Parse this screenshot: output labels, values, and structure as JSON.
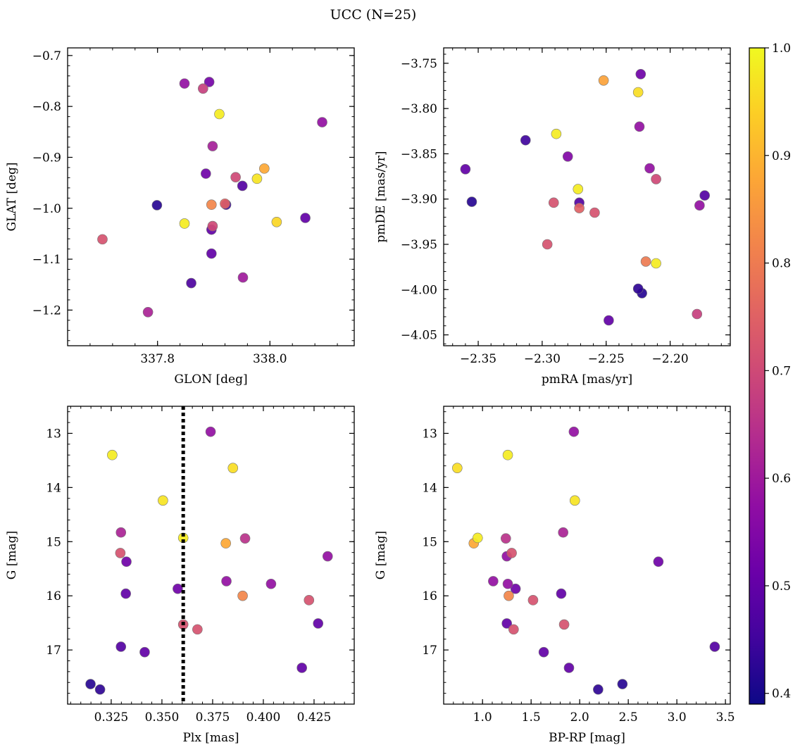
{
  "figure": {
    "title": "UCC (N=25)"
  },
  "colorbar": {
    "colormap": "plasma",
    "range": [
      0.39,
      1.0
    ],
    "ticks": [
      "0.4",
      "0.5",
      "0.6",
      "0.7",
      "0.8",
      "0.9",
      "1.0"
    ]
  },
  "chart_data": [
    {
      "type": "scatter",
      "xlabel": "GLON [deg]",
      "ylabel": "GLAT [deg]",
      "xlim": [
        337.64,
        338.15
      ],
      "ylim": [
        -1.27,
        -0.685
      ],
      "xticks": [
        337.8,
        338.0
      ],
      "xtick_labels": [
        "337.8",
        "338.0"
      ],
      "yticks": [
        -0.7,
        -0.8,
        -0.9,
        -1.0,
        -1.1,
        -1.2
      ],
      "ytick_labels": [
        "−0.7",
        "−0.8",
        "−0.9",
        "−1.0",
        "−1.1",
        "−1.2"
      ],
      "points": [
        {
          "x": 337.848,
          "y": -0.755,
          "c": 0.58
        },
        {
          "x": 337.892,
          "y": -0.752,
          "c": 0.53
        },
        {
          "x": 337.881,
          "y": -0.765,
          "c": 0.68
        },
        {
          "x": 337.91,
          "y": -0.815,
          "c": 0.98
        },
        {
          "x": 338.093,
          "y": -0.831,
          "c": 0.58
        },
        {
          "x": 337.898,
          "y": -0.878,
          "c": 0.61
        },
        {
          "x": 337.886,
          "y": -0.932,
          "c": 0.52
        },
        {
          "x": 337.939,
          "y": -0.939,
          "c": 0.7
        },
        {
          "x": 337.99,
          "y": -0.922,
          "c": 0.88
        },
        {
          "x": 337.977,
          "y": -0.942,
          "c": 0.97
        },
        {
          "x": 337.951,
          "y": -0.956,
          "c": 0.48
        },
        {
          "x": 337.799,
          "y": -0.994,
          "c": 0.42
        },
        {
          "x": 337.896,
          "y": -0.993,
          "c": 0.82
        },
        {
          "x": 337.92,
          "y": -0.991,
          "c": 0.75
        },
        {
          "x": 337.922,
          "y": -0.993,
          "c": 0.45
        },
        {
          "x": 337.848,
          "y": -1.03,
          "c": 0.98
        },
        {
          "x": 338.012,
          "y": -1.027,
          "c": 0.95
        },
        {
          "x": 338.063,
          "y": -1.019,
          "c": 0.5
        },
        {
          "x": 337.898,
          "y": -1.035,
          "c": 0.7
        },
        {
          "x": 337.896,
          "y": -1.042,
          "c": 0.5
        },
        {
          "x": 337.702,
          "y": -1.061,
          "c": 0.72
        },
        {
          "x": 337.896,
          "y": -1.089,
          "c": 0.5
        },
        {
          "x": 337.952,
          "y": -1.136,
          "c": 0.6
        },
        {
          "x": 337.86,
          "y": -1.147,
          "c": 0.47
        },
        {
          "x": 337.783,
          "y": -1.204,
          "c": 0.62
        }
      ]
    },
    {
      "type": "scatter",
      "xlabel": "pmRA [mas/yr]",
      "ylabel": "pmDE [mas/yr]",
      "xlim": [
        -2.377,
        -2.153
      ],
      "ylim": [
        -4.062,
        -3.733
      ],
      "xticks": [
        -2.35,
        -2.3,
        -2.25,
        -2.2
      ],
      "xtick_labels": [
        "−2.35",
        "−2.30",
        "−2.25",
        "−2.20"
      ],
      "yticks": [
        -3.75,
        -3.8,
        -3.85,
        -3.9,
        -3.95,
        -4.0,
        -4.05
      ],
      "ytick_labels": [
        "−3.75",
        "−3.80",
        "−3.85",
        "−3.90",
        "−3.95",
        "−4.00",
        "−4.05"
      ],
      "points": [
        {
          "x": -2.252,
          "y": -3.769,
          "c": 0.87
        },
        {
          "x": -2.223,
          "y": -3.762,
          "c": 0.52
        },
        {
          "x": -2.225,
          "y": -3.782,
          "c": 0.96
        },
        {
          "x": -2.224,
          "y": -3.82,
          "c": 0.58
        },
        {
          "x": -2.289,
          "y": -3.828,
          "c": 0.98
        },
        {
          "x": -2.313,
          "y": -3.835,
          "c": 0.45
        },
        {
          "x": -2.28,
          "y": -3.853,
          "c": 0.55
        },
        {
          "x": -2.36,
          "y": -3.867,
          "c": 0.5
        },
        {
          "x": -2.216,
          "y": -3.866,
          "c": 0.58
        },
        {
          "x": -2.211,
          "y": -3.878,
          "c": 0.7
        },
        {
          "x": -2.272,
          "y": -3.889,
          "c": 0.98
        },
        {
          "x": -2.355,
          "y": -3.903,
          "c": 0.42
        },
        {
          "x": -2.291,
          "y": -3.904,
          "c": 0.72
        },
        {
          "x": -2.271,
          "y": -3.904,
          "c": 0.48
        },
        {
          "x": -2.271,
          "y": -3.91,
          "c": 0.75
        },
        {
          "x": -2.259,
          "y": -3.915,
          "c": 0.72
        },
        {
          "x": -2.173,
          "y": -3.896,
          "c": 0.48
        },
        {
          "x": -2.177,
          "y": -3.907,
          "c": 0.58
        },
        {
          "x": -2.296,
          "y": -3.95,
          "c": 0.72
        },
        {
          "x": -2.219,
          "y": -3.969,
          "c": 0.8
        },
        {
          "x": -2.211,
          "y": -3.971,
          "c": 0.98
        },
        {
          "x": -2.225,
          "y": -3.999,
          "c": 0.43
        },
        {
          "x": -2.222,
          "y": -4.004,
          "c": 0.42
        },
        {
          "x": -2.248,
          "y": -4.034,
          "c": 0.5
        },
        {
          "x": -2.179,
          "y": -4.027,
          "c": 0.68
        }
      ]
    },
    {
      "type": "scatter",
      "xlabel": "Plx [mas]",
      "ylabel": "G [mag]",
      "xlim": [
        0.3035,
        0.4448
      ],
      "ylim": [
        18.0,
        12.5
      ],
      "xticks": [
        0.325,
        0.35,
        0.375,
        0.4,
        0.425
      ],
      "xtick_labels": [
        "0.325",
        "0.350",
        "0.375",
        "0.400",
        "0.425"
      ],
      "yticks": [
        13,
        14,
        15,
        16,
        17
      ],
      "ytick_labels": [
        "13",
        "14",
        "15",
        "16",
        "17"
      ],
      "vline": {
        "x": 0.3605,
        "style": "dotted"
      },
      "points": [
        {
          "x": 0.374,
          "y": 12.97,
          "c": 0.58
        },
        {
          "x": 0.3255,
          "y": 13.4,
          "c": 0.98
        },
        {
          "x": 0.385,
          "y": 13.64,
          "c": 0.96
        },
        {
          "x": 0.3505,
          "y": 14.24,
          "c": 0.97
        },
        {
          "x": 0.3298,
          "y": 14.83,
          "c": 0.62
        },
        {
          "x": 0.3605,
          "y": 14.93,
          "c": 0.98
        },
        {
          "x": 0.391,
          "y": 14.94,
          "c": 0.65
        },
        {
          "x": 0.3815,
          "y": 15.03,
          "c": 0.88
        },
        {
          "x": 0.3295,
          "y": 15.21,
          "c": 0.72
        },
        {
          "x": 0.4317,
          "y": 15.27,
          "c": 0.58
        },
        {
          "x": 0.3325,
          "y": 15.37,
          "c": 0.52
        },
        {
          "x": 0.3818,
          "y": 15.73,
          "c": 0.58
        },
        {
          "x": 0.4038,
          "y": 15.78,
          "c": 0.58
        },
        {
          "x": 0.3578,
          "y": 15.87,
          "c": 0.52
        },
        {
          "x": 0.3322,
          "y": 15.96,
          "c": 0.5
        },
        {
          "x": 0.3898,
          "y": 16.0,
          "c": 0.82
        },
        {
          "x": 0.4225,
          "y": 16.08,
          "c": 0.72
        },
        {
          "x": 0.427,
          "y": 16.51,
          "c": 0.5
        },
        {
          "x": 0.3605,
          "y": 16.53,
          "c": 0.72
        },
        {
          "x": 0.3675,
          "y": 16.62,
          "c": 0.72
        },
        {
          "x": 0.3298,
          "y": 16.94,
          "c": 0.48
        },
        {
          "x": 0.3415,
          "y": 17.04,
          "c": 0.5
        },
        {
          "x": 0.419,
          "y": 17.33,
          "c": 0.5
        },
        {
          "x": 0.3148,
          "y": 17.63,
          "c": 0.42
        },
        {
          "x": 0.3195,
          "y": 17.73,
          "c": 0.43
        }
      ]
    },
    {
      "type": "scatter",
      "xlabel": "BP-RP [mag]",
      "ylabel": "G [mag]",
      "xlim": [
        0.6,
        3.55
      ],
      "ylim": [
        18.0,
        12.5
      ],
      "xticks": [
        1.0,
        1.5,
        2.0,
        2.5,
        3.0,
        3.5
      ],
      "xtick_labels": [
        "1.0",
        "1.5",
        "2.0",
        "2.5",
        "3.0",
        "3.5"
      ],
      "yticks": [
        13,
        14,
        15,
        16,
        17
      ],
      "ytick_labels": [
        "13",
        "14",
        "15",
        "16",
        "17"
      ],
      "points": [
        {
          "x": 1.94,
          "y": 12.97,
          "c": 0.58
        },
        {
          "x": 1.26,
          "y": 13.4,
          "c": 0.98
        },
        {
          "x": 0.74,
          "y": 13.64,
          "c": 0.96
        },
        {
          "x": 1.95,
          "y": 14.24,
          "c": 0.97
        },
        {
          "x": 1.83,
          "y": 14.83,
          "c": 0.62
        },
        {
          "x": 0.95,
          "y": 14.93,
          "c": 0.98
        },
        {
          "x": 1.24,
          "y": 14.94,
          "c": 0.65
        },
        {
          "x": 0.91,
          "y": 15.03,
          "c": 0.88
        },
        {
          "x": 1.3,
          "y": 15.21,
          "c": 0.72
        },
        {
          "x": 1.25,
          "y": 15.27,
          "c": 0.58
        },
        {
          "x": 2.81,
          "y": 15.37,
          "c": 0.52
        },
        {
          "x": 1.11,
          "y": 15.73,
          "c": 0.58
        },
        {
          "x": 1.26,
          "y": 15.78,
          "c": 0.58
        },
        {
          "x": 1.34,
          "y": 15.87,
          "c": 0.52
        },
        {
          "x": 1.81,
          "y": 15.96,
          "c": 0.5
        },
        {
          "x": 1.27,
          "y": 16.0,
          "c": 0.82
        },
        {
          "x": 1.52,
          "y": 16.08,
          "c": 0.72
        },
        {
          "x": 1.25,
          "y": 16.51,
          "c": 0.5
        },
        {
          "x": 1.84,
          "y": 16.53,
          "c": 0.72
        },
        {
          "x": 1.32,
          "y": 16.62,
          "c": 0.72
        },
        {
          "x": 3.39,
          "y": 16.94,
          "c": 0.48
        },
        {
          "x": 1.63,
          "y": 17.04,
          "c": 0.5
        },
        {
          "x": 1.89,
          "y": 17.33,
          "c": 0.5
        },
        {
          "x": 2.44,
          "y": 17.63,
          "c": 0.42
        },
        {
          "x": 2.19,
          "y": 17.73,
          "c": 0.43
        }
      ]
    }
  ]
}
